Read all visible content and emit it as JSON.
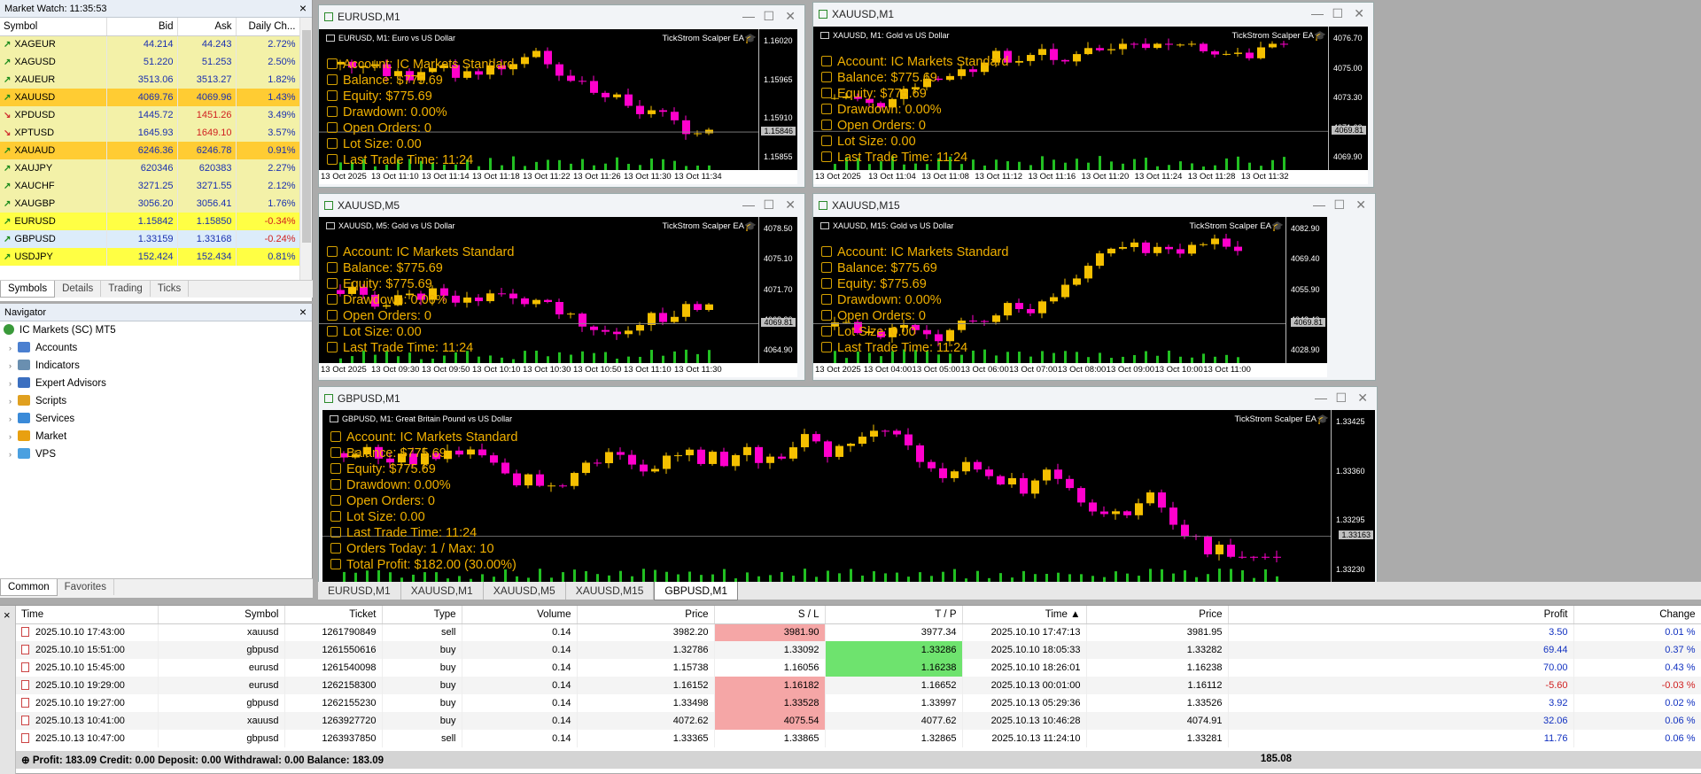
{
  "market_watch": {
    "title": "Market Watch: 11:35:53",
    "columns": [
      "Symbol",
      "Bid",
      "Ask",
      "Daily Ch..."
    ],
    "rows": [
      {
        "symbol": "XAGEUR",
        "bid": "44.214",
        "ask": "44.243",
        "change": "2.72%",
        "dir": "up",
        "bg": "#f3f1a8"
      },
      {
        "symbol": "XAGUSD",
        "bid": "51.220",
        "ask": "51.253",
        "change": "2.50%",
        "dir": "up",
        "bg": "#f3f1a8"
      },
      {
        "symbol": "XAUEUR",
        "bid": "3513.06",
        "ask": "3513.27",
        "change": "1.82%",
        "dir": "up",
        "bg": "#f3f1a8"
      },
      {
        "symbol": "XAUUSD",
        "bid": "4069.76",
        "ask": "4069.96",
        "change": "1.43%",
        "dir": "up",
        "bg": "#ffcc33"
      },
      {
        "symbol": "XPDUSD",
        "bid": "1445.72",
        "ask": "1451.26",
        "change": "3.49%",
        "dir": "down",
        "bg": "#f3f1a8",
        "ask_red": true
      },
      {
        "symbol": "XPTUSD",
        "bid": "1645.93",
        "ask": "1649.10",
        "change": "3.57%",
        "dir": "down",
        "bg": "#f3f1a8",
        "ask_red": true
      },
      {
        "symbol": "XAUAUD",
        "bid": "6246.36",
        "ask": "6246.78",
        "change": "0.91%",
        "dir": "up",
        "bg": "#ffcc33"
      },
      {
        "symbol": "XAUJPY",
        "bid": "620346",
        "ask": "620383",
        "change": "2.27%",
        "dir": "up",
        "bg": "#f3f1a8"
      },
      {
        "symbol": "XAUCHF",
        "bid": "3271.25",
        "ask": "3271.55",
        "change": "2.12%",
        "dir": "up",
        "bg": "#f3f1a8"
      },
      {
        "symbol": "XAUGBP",
        "bid": "3056.20",
        "ask": "3056.41",
        "change": "1.76%",
        "dir": "up",
        "bg": "#f3f1a8"
      },
      {
        "symbol": "EURUSD",
        "bid": "1.15842",
        "ask": "1.15850",
        "change": "-0.34%",
        "dir": "up",
        "bg": "#ffff44",
        "chg_red": true
      },
      {
        "symbol": "GBPUSD",
        "bid": "1.33159",
        "ask": "1.33168",
        "change": "-0.24%",
        "dir": "up",
        "bg": "#dcecfa",
        "chg_red": true
      },
      {
        "symbol": "USDJPY",
        "bid": "152.424",
        "ask": "152.434",
        "change": "0.81%",
        "dir": "up",
        "bg": "#ffff44"
      }
    ],
    "tabs": [
      "Symbols",
      "Details",
      "Trading",
      "Ticks"
    ]
  },
  "navigator": {
    "title": "Navigator",
    "root": "IC Markets (SC) MT5",
    "items": [
      {
        "label": "Accounts",
        "color": "#4a7fd0"
      },
      {
        "label": "Indicators",
        "color": "#6a8fb0"
      },
      {
        "label": "Expert Advisors",
        "color": "#3b6fc0"
      },
      {
        "label": "Scripts",
        "color": "#e0a020"
      },
      {
        "label": "Services",
        "color": "#3a8ad8"
      },
      {
        "label": "Market",
        "color": "#e8a010"
      },
      {
        "label": "VPS",
        "color": "#4aa0e0"
      }
    ],
    "tabs": [
      "Common",
      "Favorites"
    ]
  },
  "ea_panel": {
    "account": "Account: IC Markets Standard",
    "balance": "Balance: $775.69",
    "equity": "Equity: $775.69",
    "drawdown": "Drawdown: 0.00%",
    "open_orders": "Open Orders: 0",
    "lot_size": "Lot Size: 0.00",
    "last_trade": "Last Trade Time: 11:24",
    "orders_today": "Orders Today: 1 / Max: 10",
    "total_profit": "Total Profit: $182.00 (30.00%)"
  },
  "charts": [
    {
      "id": "eurusd_m1",
      "title": "EURUSD,M1",
      "header": "EURUSD, M1:  Euro vs US Dollar",
      "ea": "TickStrom Scalper EA",
      "yticks": [
        "1.16020",
        "1.15965",
        "1.15910",
        "1.15855"
      ],
      "price_tag": "1.15846",
      "xticks": [
        "13 Oct 2025",
        "13 Oct 11:10",
        "13 Oct 11:14",
        "13 Oct 11:18",
        "13 Oct 11:22",
        "13 Oct 11:26",
        "13 Oct 11:30",
        "13 Oct 11:34"
      ]
    },
    {
      "id": "xauusd_m1",
      "title": "XAUUSD,M1",
      "header": "XAUUSD, M1:  Gold vs US Dollar",
      "ea": "TickStrom Scalper EA",
      "yticks": [
        "4076.70",
        "4075.00",
        "4073.30",
        "4071.60",
        "4069.90"
      ],
      "price_tag": "4069.81",
      "xticks": [
        "13 Oct 2025",
        "13 Oct 11:04",
        "13 Oct 11:08",
        "13 Oct 11:12",
        "13 Oct 11:16",
        "13 Oct 11:20",
        "13 Oct 11:24",
        "13 Oct 11:28",
        "13 Oct 11:32"
      ]
    },
    {
      "id": "xauusd_m5",
      "title": "XAUUSD,M5",
      "header": "XAUUSD, M5:  Gold vs US Dollar",
      "ea": "TickStrom Scalper EA",
      "yticks": [
        "4078.50",
        "4075.10",
        "4071.70",
        "4068.30",
        "4064.90"
      ],
      "price_tag": "4069.81",
      "xticks": [
        "13 Oct 2025",
        "13 Oct 09:30",
        "13 Oct 09:50",
        "13 Oct 10:10",
        "13 Oct 10:30",
        "13 Oct 10:50",
        "13 Oct 11:10",
        "13 Oct 11:30"
      ]
    },
    {
      "id": "xauusd_m15",
      "title": "XAUUSD,M15",
      "header": "XAUUSD, M15:  Gold vs US Dollar",
      "ea": "TickStrom Scalper EA",
      "yticks": [
        "4082.90",
        "4069.40",
        "4055.90",
        "4042.40",
        "4028.90"
      ],
      "price_tag": "4069.81",
      "xticks": [
        "13 Oct 2025",
        "13 Oct 04:00",
        "13 Oct 05:00",
        "13 Oct 06:00",
        "13 Oct 07:00",
        "13 Oct 08:00",
        "13 Oct 09:00",
        "13 Oct 10:00",
        "13 Oct 11:00"
      ]
    },
    {
      "id": "gbpusd_m1",
      "title": "GBPUSD,M1",
      "header": "GBPUSD, M1:  Great Britain Pound vs US Dollar",
      "ea": "TickStrom Scalper EA",
      "yticks": [
        "1.33425",
        "1.33360",
        "1.33295",
        "1.33230"
      ],
      "price_tag": "1.33163",
      "xticks": []
    }
  ],
  "chart_tabs": [
    "EURUSD,M1",
    "XAUUSD,M1",
    "XAUUSD,M5",
    "XAUUSD,M15",
    "GBPUSD,M1"
  ],
  "toolbox": {
    "columns": [
      "Time",
      "Symbol",
      "Ticket",
      "Type",
      "Volume",
      "Price",
      "S / L",
      "T / P",
      "Time ▲",
      "Price",
      "Profit",
      "Change"
    ],
    "rows": [
      [
        "2025.10.10 17:43:00",
        "xauusd",
        "1261790849",
        "sell",
        "0.14",
        "3982.20",
        "3981.90",
        "3977.34",
        "2025.10.10 17:47:13",
        "3981.95",
        "3.50",
        "0.01 %"
      ],
      [
        "2025.10.10 15:51:00",
        "gbpusd",
        "1261550616",
        "buy",
        "0.14",
        "1.32786",
        "1.33092",
        "1.33286",
        "2025.10.10 18:05:33",
        "1.33282",
        "69.44",
        "0.37 %"
      ],
      [
        "2025.10.10 15:45:00",
        "eurusd",
        "1261540098",
        "buy",
        "0.14",
        "1.15738",
        "1.16056",
        "1.16238",
        "2025.10.10 18:26:01",
        "1.16238",
        "70.00",
        "0.43 %"
      ],
      [
        "2025.10.10 19:29:00",
        "eurusd",
        "1262158300",
        "buy",
        "0.14",
        "1.16152",
        "1.16182",
        "1.16652",
        "2025.10.13 00:01:00",
        "1.16112",
        "-5.60",
        "-0.03 %"
      ],
      [
        "2025.10.10 19:27:00",
        "gbpusd",
        "1262155230",
        "buy",
        "0.14",
        "1.33498",
        "1.33528",
        "1.33997",
        "2025.10.13 05:29:36",
        "1.33526",
        "3.92",
        "0.02 %"
      ],
      [
        "2025.10.13 10:41:00",
        "xauusd",
        "1263927720",
        "buy",
        "0.14",
        "4072.62",
        "4075.54",
        "4077.62",
        "2025.10.13 10:46:28",
        "4074.91",
        "32.06",
        "0.06 %"
      ],
      [
        "2025.10.13 10:47:00",
        "gbpusd",
        "1263937850",
        "sell",
        "0.14",
        "1.33365",
        "1.33865",
        "1.32865",
        "2025.10.13 11:24:10",
        "1.33281",
        "11.76",
        "0.06 %"
      ]
    ],
    "row_styles": [
      {
        "sl": "red",
        "tp": ""
      },
      {
        "sl": "",
        "tp": "green"
      },
      {
        "sl": "",
        "tp": "green"
      },
      {
        "sl": "red",
        "tp": ""
      },
      {
        "sl": "red",
        "tp": ""
      },
      {
        "sl": "red",
        "tp": ""
      },
      {
        "sl": "",
        "tp": ""
      }
    ],
    "footer": "Profit: 183.09  Credit: 0.00  Deposit: 0.00  Withdrawal: 0.00  Balance: 183.09",
    "footer_total": "185.08"
  }
}
